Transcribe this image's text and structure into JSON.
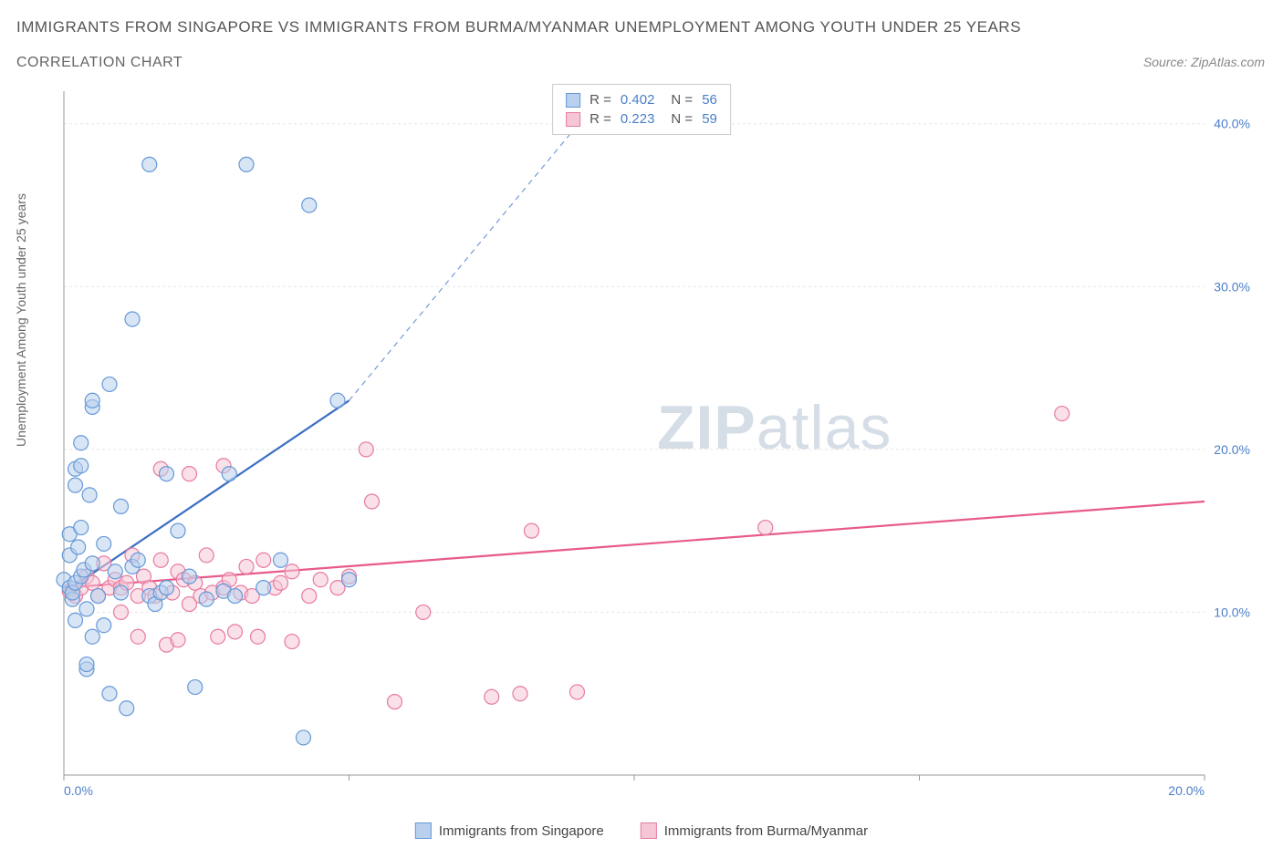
{
  "title": "IMMIGRANTS FROM SINGAPORE VS IMMIGRANTS FROM BURMA/MYANMAR UNEMPLOYMENT AMONG YOUTH UNDER 25 YEARS",
  "subtitle": "CORRELATION CHART",
  "source": "Source: ZipAtlas.com",
  "ylabel": "Unemployment Among Youth under 25 years",
  "watermark_bold": "ZIP",
  "watermark_light": "atlas",
  "chart": {
    "type": "scatter",
    "xlim": [
      0,
      20
    ],
    "ylim": [
      0,
      42
    ],
    "yticks": [
      10,
      20,
      30,
      40
    ],
    "ytick_labels": [
      "10.0%",
      "20.0%",
      "30.0%",
      "40.0%"
    ],
    "xtick_major_positions": [
      0,
      5,
      10,
      15,
      20
    ],
    "xtick_left_label": "0.0%",
    "xtick_right_label": "20.0%",
    "grid_color": "#e5e5e5",
    "axis_color": "#999999",
    "background_color": "#ffffff"
  },
  "series_a": {
    "label": "Immigrants from Singapore",
    "fill_color": "#b8d0ed",
    "stroke_color": "#6699d8",
    "line_color": "#3b6fc4",
    "marker_radius": 8,
    "fill_opacity": 0.55,
    "trend": {
      "x1": 0.0,
      "y1": 11.2,
      "x2": 5.0,
      "y2": 23.0,
      "x2_dash": 9.5,
      "y2_dash": 42.0
    },
    "stats": {
      "R": "0.402",
      "N": "56"
    },
    "points": [
      [
        0.0,
        12.0
      ],
      [
        0.1,
        11.5
      ],
      [
        0.1,
        13.5
      ],
      [
        0.1,
        14.8
      ],
      [
        0.15,
        10.8
      ],
      [
        0.15,
        11.2
      ],
      [
        0.2,
        9.5
      ],
      [
        0.2,
        11.8
      ],
      [
        0.2,
        17.8
      ],
      [
        0.2,
        18.8
      ],
      [
        0.25,
        14.0
      ],
      [
        0.3,
        12.2
      ],
      [
        0.3,
        15.2
      ],
      [
        0.3,
        19.0
      ],
      [
        0.3,
        20.4
      ],
      [
        0.35,
        12.6
      ],
      [
        0.4,
        6.5
      ],
      [
        0.4,
        6.8
      ],
      [
        0.4,
        10.2
      ],
      [
        0.45,
        17.2
      ],
      [
        0.5,
        8.5
      ],
      [
        0.5,
        13.0
      ],
      [
        0.5,
        22.6
      ],
      [
        0.5,
        23.0
      ],
      [
        0.6,
        11.0
      ],
      [
        0.7,
        9.2
      ],
      [
        0.7,
        14.2
      ],
      [
        0.8,
        5.0
      ],
      [
        0.8,
        24.0
      ],
      [
        0.9,
        12.5
      ],
      [
        1.0,
        11.2
      ],
      [
        1.0,
        16.5
      ],
      [
        1.1,
        4.1
      ],
      [
        1.2,
        12.8
      ],
      [
        1.2,
        28.0
      ],
      [
        1.3,
        13.2
      ],
      [
        1.5,
        11.0
      ],
      [
        1.5,
        37.5
      ],
      [
        1.6,
        10.5
      ],
      [
        1.7,
        11.2
      ],
      [
        1.8,
        11.5
      ],
      [
        1.8,
        18.5
      ],
      [
        2.0,
        15.0
      ],
      [
        2.2,
        12.2
      ],
      [
        2.3,
        5.4
      ],
      [
        2.5,
        10.8
      ],
      [
        2.8,
        11.3
      ],
      [
        2.9,
        18.5
      ],
      [
        3.0,
        11.0
      ],
      [
        3.2,
        37.5
      ],
      [
        3.5,
        11.5
      ],
      [
        3.8,
        13.2
      ],
      [
        4.2,
        2.3
      ],
      [
        4.3,
        35.0
      ],
      [
        4.8,
        23.0
      ],
      [
        5.0,
        12.0
      ]
    ]
  },
  "series_b": {
    "label": "Immigrants from Burma/Myanmar",
    "fill_color": "#f5c6d5",
    "stroke_color": "#e77ba0",
    "line_color": "#e85a8a",
    "marker_radius": 8,
    "fill_opacity": 0.55,
    "trend": {
      "x1": 0.0,
      "y1": 11.5,
      "x2": 20.0,
      "y2": 16.8
    },
    "stats": {
      "R": "0.223",
      "N": "59"
    },
    "points": [
      [
        0.1,
        11.3
      ],
      [
        0.2,
        11.0
      ],
      [
        0.3,
        11.5
      ],
      [
        0.4,
        12.2
      ],
      [
        0.5,
        11.8
      ],
      [
        0.6,
        11.0
      ],
      [
        0.7,
        13.0
      ],
      [
        0.8,
        11.5
      ],
      [
        0.9,
        12.0
      ],
      [
        1.0,
        10.0
      ],
      [
        1.0,
        11.5
      ],
      [
        1.1,
        11.8
      ],
      [
        1.2,
        13.5
      ],
      [
        1.3,
        8.5
      ],
      [
        1.3,
        11.0
      ],
      [
        1.4,
        12.2
      ],
      [
        1.5,
        11.5
      ],
      [
        1.6,
        11.0
      ],
      [
        1.7,
        13.2
      ],
      [
        1.7,
        18.8
      ],
      [
        1.8,
        8.0
      ],
      [
        1.9,
        11.2
      ],
      [
        2.0,
        12.5
      ],
      [
        2.0,
        8.3
      ],
      [
        2.1,
        12.0
      ],
      [
        2.2,
        10.5
      ],
      [
        2.2,
        18.5
      ],
      [
        2.3,
        11.8
      ],
      [
        2.4,
        11.0
      ],
      [
        2.5,
        13.5
      ],
      [
        2.6,
        11.2
      ],
      [
        2.7,
        8.5
      ],
      [
        2.8,
        11.5
      ],
      [
        2.8,
        19.0
      ],
      [
        2.9,
        12.0
      ],
      [
        3.0,
        8.8
      ],
      [
        3.1,
        11.2
      ],
      [
        3.2,
        12.8
      ],
      [
        3.3,
        11.0
      ],
      [
        3.4,
        8.5
      ],
      [
        3.5,
        13.2
      ],
      [
        3.7,
        11.5
      ],
      [
        3.8,
        11.8
      ],
      [
        4.0,
        12.5
      ],
      [
        4.0,
        8.2
      ],
      [
        4.3,
        11.0
      ],
      [
        4.5,
        12.0
      ],
      [
        4.8,
        11.5
      ],
      [
        5.0,
        12.2
      ],
      [
        5.3,
        20.0
      ],
      [
        5.4,
        16.8
      ],
      [
        5.8,
        4.5
      ],
      [
        6.3,
        10.0
      ],
      [
        7.5,
        4.8
      ],
      [
        8.0,
        5.0
      ],
      [
        8.2,
        15.0
      ],
      [
        9.0,
        5.1
      ],
      [
        12.3,
        15.2
      ],
      [
        17.5,
        22.2
      ]
    ]
  },
  "legend": {
    "R_label": "R =",
    "N_label": "N ="
  }
}
